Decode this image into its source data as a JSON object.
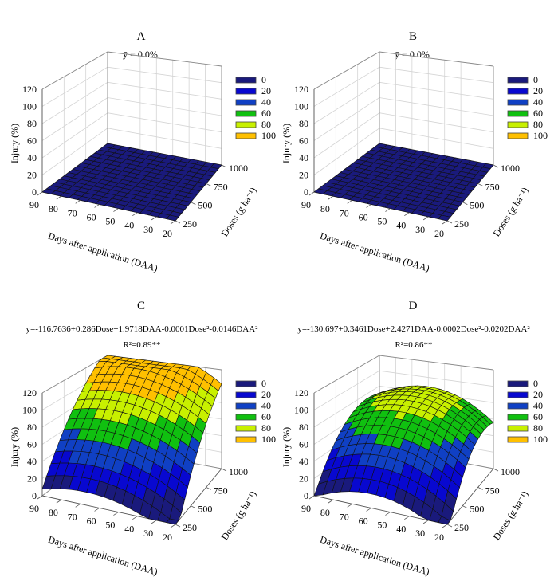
{
  "chart_data": [
    {
      "panel": "A",
      "type": "surface",
      "subtitle": "ȳ = 0.0%",
      "model": "constant",
      "mean": 0.0,
      "xlabel": "Days after application  (DAA)",
      "ylabel": "Doses (g ha⁻¹)",
      "zlabel": "Injury (%)",
      "x_ticks": [
        "90",
        "80",
        "70",
        "60",
        "50",
        "40",
        "30",
        "20"
      ],
      "y_ticks": [
        "250",
        "500",
        "750",
        "1000"
      ],
      "z_ticks": [
        "0",
        "20",
        "40",
        "60",
        "80",
        "100",
        "120"
      ],
      "xlim": [
        20,
        90
      ],
      "ylim": [
        250,
        1000
      ],
      "zlim": [
        0,
        120
      ],
      "legend": {
        "placement": "right",
        "levels": [
          "0",
          "20",
          "40",
          "60",
          "80",
          "100"
        ]
      }
    },
    {
      "panel": "B",
      "type": "surface",
      "subtitle": "ȳ = 0.0%",
      "model": "constant",
      "mean": 0.0,
      "xlabel": "Days after application  (DAA)",
      "ylabel": "Doses (g ha⁻¹)",
      "zlabel": "Injury (%)",
      "x_ticks": [
        "90",
        "80",
        "70",
        "60",
        "50",
        "40",
        "30",
        "20"
      ],
      "y_ticks": [
        "250",
        "500",
        "750",
        "1000"
      ],
      "z_ticks": [
        "0",
        "20",
        "40",
        "60",
        "80",
        "100",
        "120"
      ],
      "xlim": [
        20,
        90
      ],
      "ylim": [
        250,
        1000
      ],
      "zlim": [
        0,
        120
      ],
      "legend": {
        "placement": "right",
        "levels": [
          "0",
          "20",
          "40",
          "60",
          "80",
          "100"
        ]
      }
    },
    {
      "panel": "C",
      "type": "surface",
      "equation": "y=-116.7636+0.286Dose+1.9718DAA-0.0001Dose²-0.0146DAA²",
      "r2": "R²=0.89**",
      "model": "quadratic",
      "coefficients": {
        "intercept": -116.7636,
        "dose": 0.286,
        "daa": 1.9718,
        "dose2": -0.0001,
        "daa2": -0.0146
      },
      "xlabel": "Days after application  (DAA)",
      "ylabel": "Doses (g ha⁻¹)",
      "zlabel": "Injury (%)",
      "x_ticks": [
        "90",
        "80",
        "70",
        "60",
        "50",
        "40",
        "30",
        "20"
      ],
      "y_ticks": [
        "250",
        "500",
        "750",
        "1000"
      ],
      "z_ticks": [
        "0",
        "20",
        "40",
        "60",
        "80",
        "100",
        "120"
      ],
      "xlim": [
        20,
        90
      ],
      "ylim": [
        250,
        1000
      ],
      "zlim": [
        0,
        120
      ],
      "legend": {
        "placement": "right",
        "levels": [
          "0",
          "20",
          "40",
          "60",
          "80",
          "100"
        ]
      }
    },
    {
      "panel": "D",
      "type": "surface",
      "equation": "y=-130.697+0.3461Dose+2.4271DAA-0.0002Dose²-0.0202DAA²",
      "r2": "R²=0.86**",
      "model": "quadratic",
      "coefficients": {
        "intercept": -130.697,
        "dose": 0.3461,
        "daa": 2.4271,
        "dose2": -0.0002,
        "daa2": -0.0202
      },
      "xlabel": "Days after application  (DAA)",
      "ylabel": "Doses (g ha⁻¹)",
      "zlabel": "Injury (%)",
      "x_ticks": [
        "90",
        "80",
        "70",
        "60",
        "50",
        "40",
        "30",
        "20"
      ],
      "y_ticks": [
        "250",
        "500",
        "750",
        "1000"
      ],
      "z_ticks": [
        "0",
        "20",
        "40",
        "60",
        "80",
        "100",
        "120"
      ],
      "xlim": [
        20,
        90
      ],
      "ylim": [
        250,
        1000
      ],
      "zlim": [
        0,
        120
      ],
      "legend": {
        "placement": "right",
        "levels": [
          "0",
          "20",
          "40",
          "60",
          "80",
          "100"
        ]
      }
    }
  ],
  "colors": {
    "level_0": "#1a1a7c",
    "level_20": "#0808d0",
    "level_40": "#1040c4",
    "level_60": "#10c010",
    "level_80": "#c8f000",
    "level_100": "#ffc000",
    "wall_grid": "#d4d4d4",
    "box_edge": "#8a8a8a"
  }
}
